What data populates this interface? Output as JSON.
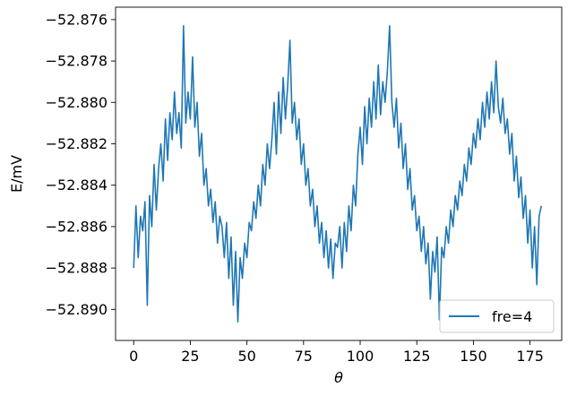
{
  "chart_data": {
    "type": "line",
    "xlabel": "θ",
    "ylabel": "E/mV",
    "xlim": [
      -8,
      189
    ],
    "ylim": [
      -52.8915,
      -52.8754
    ],
    "xticks": [
      {
        "value": 0,
        "label": "0"
      },
      {
        "value": 25,
        "label": "25"
      },
      {
        "value": 50,
        "label": "50"
      },
      {
        "value": 75,
        "label": "75"
      },
      {
        "value": 100,
        "label": "100"
      },
      {
        "value": 125,
        "label": "125"
      },
      {
        "value": 150,
        "label": "150"
      },
      {
        "value": 175,
        "label": "175"
      }
    ],
    "yticks": [
      {
        "value": -52.89,
        "label": "−52.890"
      },
      {
        "value": -52.888,
        "label": "−52.888"
      },
      {
        "value": -52.886,
        "label": "−52.886"
      },
      {
        "value": -52.884,
        "label": "−52.884"
      },
      {
        "value": -52.882,
        "label": "−52.882"
      },
      {
        "value": -52.88,
        "label": "−52.880"
      },
      {
        "value": -52.878,
        "label": "−52.878"
      },
      {
        "value": -52.876,
        "label": "−52.876"
      }
    ],
    "grid": false,
    "legend": {
      "position": "bottom-right",
      "entries": [
        "fre=4"
      ]
    },
    "series": [
      {
        "name": "fre=4",
        "color": "#1f77b4",
        "x": [
          0,
          1,
          2,
          3,
          4,
          5,
          6,
          7,
          8,
          9,
          10,
          11,
          12,
          13,
          14,
          15,
          16,
          17,
          18,
          19,
          20,
          21,
          22,
          23,
          24,
          25,
          26,
          27,
          28,
          29,
          30,
          31,
          32,
          33,
          34,
          35,
          36,
          37,
          38,
          39,
          40,
          41,
          42,
          43,
          44,
          45,
          46,
          47,
          48,
          49,
          50,
          51,
          52,
          53,
          54,
          55,
          56,
          57,
          58,
          59,
          60,
          61,
          62,
          63,
          64,
          65,
          66,
          67,
          68,
          69,
          70,
          71,
          72,
          73,
          74,
          75,
          76,
          77,
          78,
          79,
          80,
          81,
          82,
          83,
          84,
          85,
          86,
          87,
          88,
          89,
          90,
          91,
          92,
          93,
          94,
          95,
          96,
          97,
          98,
          99,
          100,
          101,
          102,
          103,
          104,
          105,
          106,
          107,
          108,
          109,
          110,
          111,
          112,
          113,
          114,
          115,
          116,
          117,
          118,
          119,
          120,
          121,
          122,
          123,
          124,
          125,
          126,
          127,
          128,
          129,
          130,
          131,
          132,
          133,
          134,
          135,
          136,
          137,
          138,
          139,
          140,
          141,
          142,
          143,
          144,
          145,
          146,
          147,
          148,
          149,
          150,
          151,
          152,
          153,
          154,
          155,
          156,
          157,
          158,
          159,
          160,
          161,
          162,
          163,
          164,
          165,
          166,
          167,
          168,
          169,
          170,
          171,
          172,
          173,
          174,
          175,
          176,
          177,
          178,
          179,
          180
        ],
        "y": [
          -52.888,
          -52.885,
          -52.8875,
          -52.8855,
          -52.8862,
          -52.8848,
          -52.8898,
          -52.8845,
          -52.886,
          -52.883,
          -52.8852,
          -52.8832,
          -52.882,
          -52.8838,
          -52.8808,
          -52.8828,
          -52.8805,
          -52.8818,
          -52.8795,
          -52.8815,
          -52.8805,
          -52.8822,
          -52.8763,
          -52.881,
          -52.8795,
          -52.8808,
          -52.8778,
          -52.8812,
          -52.88,
          -52.8826,
          -52.8815,
          -52.884,
          -52.8832,
          -52.885,
          -52.8842,
          -52.8858,
          -52.8848,
          -52.8868,
          -52.8855,
          -52.886,
          -52.8875,
          -52.8858,
          -52.8885,
          -52.8865,
          -52.8898,
          -52.8872,
          -52.8906,
          -52.8875,
          -52.8885,
          -52.8868,
          -52.8875,
          -52.8858,
          -52.8862,
          -52.8848,
          -52.8856,
          -52.884,
          -52.885,
          -52.883,
          -52.884,
          -52.882,
          -52.8832,
          -52.8818,
          -52.88,
          -52.8825,
          -52.8795,
          -52.8815,
          -52.8788,
          -52.8808,
          -52.8792,
          -52.877,
          -52.881,
          -52.88,
          -52.8818,
          -52.8808,
          -52.883,
          -52.882,
          -52.884,
          -52.8832,
          -52.885,
          -52.8842,
          -52.886,
          -52.885,
          -52.8868,
          -52.8858,
          -52.8875,
          -52.8862,
          -52.888,
          -52.8866,
          -52.8885,
          -52.8868,
          -52.887,
          -52.886,
          -52.888,
          -52.8858,
          -52.8872,
          -52.885,
          -52.8862,
          -52.884,
          -52.885,
          -52.8825,
          -52.8812,
          -52.883,
          -52.8802,
          -52.882,
          -52.8798,
          -52.8812,
          -52.879,
          -52.8808,
          -52.8782,
          -52.8806,
          -52.879,
          -52.88,
          -52.8785,
          -52.8763,
          -52.88,
          -52.8812,
          -52.8798,
          -52.8822,
          -52.881,
          -52.8832,
          -52.882,
          -52.8842,
          -52.8832,
          -52.8852,
          -52.8845,
          -52.8862,
          -52.8855,
          -52.8872,
          -52.886,
          -52.8878,
          -52.8868,
          -52.8895,
          -52.8872,
          -52.8882,
          -52.8865,
          -52.8905,
          -52.887,
          -52.8875,
          -52.886,
          -52.8868,
          -52.8852,
          -52.886,
          -52.8845,
          -52.8852,
          -52.8838,
          -52.8845,
          -52.883,
          -52.8838,
          -52.8822,
          -52.883,
          -52.8815,
          -52.8822,
          -52.8808,
          -52.8818,
          -52.88,
          -52.8812,
          -52.8795,
          -52.8808,
          -52.879,
          -52.8805,
          -52.878,
          -52.8802,
          -52.881,
          -52.8798,
          -52.8815,
          -52.8808,
          -52.8825,
          -52.8815,
          -52.8838,
          -52.8826,
          -52.8846,
          -52.8836,
          -52.8856,
          -52.8845,
          -52.8868,
          -52.8852,
          -52.888,
          -52.886,
          -52.8888,
          -52.8855,
          -52.885
        ]
      }
    ]
  }
}
